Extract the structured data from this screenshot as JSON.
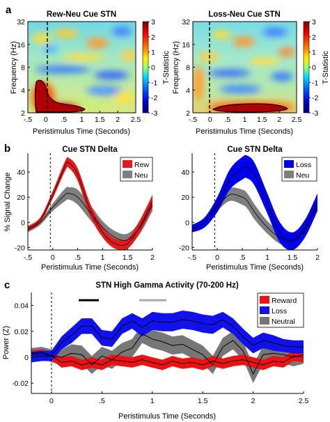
{
  "panel_letters": [
    "a",
    "b",
    "c"
  ],
  "chart_data": [
    {
      "type": "heatmap",
      "panel": "a",
      "title": "Rew-Neu Cue STN",
      "xlabel": "Peristimulus Time (Seconds)",
      "ylabel": "Frequency (Hz)",
      "x_ticks": [
        "-.5",
        "0",
        ".5",
        "1",
        "1.5",
        "2",
        "2.5"
      ],
      "x_range": [
        -0.5,
        2.5
      ],
      "y_ticks": [
        "2",
        "4",
        "8",
        "16",
        "32"
      ],
      "y_range_hz": [
        2,
        32
      ],
      "y_scale": "log2",
      "colorbar": {
        "label": "T-Statistic",
        "range": [
          -3,
          3
        ],
        "ticks": [
          "3",
          "2",
          "1",
          "0",
          "-1",
          "-2",
          "-3"
        ]
      },
      "event_line_x": -0.05,
      "significant_cluster": "low-frequency (2-5 Hz) positive cluster from about -0.1 to 0.6 s, tapering to 1.3 s near 2 Hz",
      "colormap": "jet"
    },
    {
      "type": "heatmap",
      "panel": "a",
      "title": "Loss-Neu Cue STN",
      "xlabel": "Peristimulus Time (Seconds)",
      "ylabel": "Frequency (Hz)",
      "x_ticks": [
        "-.5",
        "0",
        ".5",
        "1",
        "1.5",
        "2",
        "2.5"
      ],
      "x_range": [
        -0.5,
        2.5
      ],
      "y_ticks": [
        "2",
        "4",
        "8",
        "16",
        "32"
      ],
      "y_range_hz": [
        2,
        32
      ],
      "y_scale": "log2",
      "colorbar": {
        "label": "T-Statistic",
        "range": [
          -3,
          3
        ],
        "ticks": [
          "3",
          "2",
          "1",
          "0",
          "-1",
          "-2",
          "-3"
        ]
      },
      "event_line_x": -0.05,
      "significant_cluster": "low-frequency (2-2.6 Hz) positive cluster from about 0.2 to 2.0 s",
      "colormap": "jet"
    },
    {
      "type": "line",
      "panel": "b",
      "title": "Cue STN Delta",
      "xlabel": "Peristimulus Time (Seconds)",
      "ylabel": "% Signal Change",
      "x_ticks": [
        "-.5",
        "0",
        ".5",
        "1",
        "1.5",
        "2"
      ],
      "y_ticks": [
        "-20",
        "0",
        "20",
        "40"
      ],
      "xlim": [
        -0.5,
        2
      ],
      "ylim": [
        -22,
        55
      ],
      "event_line_x": -0.05,
      "legend_position": "top-right",
      "x": [
        -0.5,
        -0.25,
        0,
        0.25,
        0.33,
        0.5,
        0.75,
        1,
        1.25,
        1.5,
        1.75,
        2
      ],
      "series": [
        {
          "name": "Rew",
          "color": "#e41a1c",
          "values": [
            -5,
            2,
            22,
            45,
            47,
            38,
            10,
            -8,
            -17,
            -17,
            -3,
            17
          ],
          "error": [
            2,
            2,
            3,
            4,
            4,
            5,
            5,
            4,
            4,
            4,
            5,
            5
          ]
        },
        {
          "name": "Neu",
          "color": "#7f7f7f",
          "values": [
            -6,
            0,
            12,
            22,
            23,
            20,
            8,
            -4,
            -12,
            -14,
            -4,
            14
          ],
          "error": [
            2,
            2,
            3,
            5,
            5,
            6,
            6,
            5,
            5,
            5,
            5,
            5
          ]
        }
      ]
    },
    {
      "type": "line",
      "panel": "b",
      "title": "Cue STN Delta",
      "xlabel": "Peristimulus Time (Seconds)",
      "ylabel": "% Signal Change",
      "x_ticks": [
        "-.5",
        "0",
        ".5",
        "1",
        "1.5",
        "2"
      ],
      "y_ticks": [
        "-20",
        "0",
        "20",
        "40"
      ],
      "xlim": [
        -0.5,
        2
      ],
      "ylim": [
        -22,
        55
      ],
      "event_line_x": -0.05,
      "legend_position": "top-right",
      "x": [
        -0.5,
        -0.25,
        0,
        0.25,
        0.5,
        0.6,
        0.75,
        1,
        1.25,
        1.5,
        1.75,
        2
      ],
      "series": [
        {
          "name": "Loss",
          "color": "#0000ee",
          "values": [
            -5,
            0,
            14,
            34,
            43,
            44,
            38,
            15,
            -8,
            -15,
            -5,
            16
          ],
          "error": [
            3,
            4,
            6,
            8,
            9,
            9,
            9,
            8,
            8,
            7,
            7,
            7
          ]
        },
        {
          "name": "Neu",
          "color": "#7f7f7f",
          "values": [
            -6,
            0,
            12,
            22,
            20,
            17,
            8,
            -4,
            -12,
            -14,
            -4,
            14
          ],
          "error": [
            2,
            2,
            3,
            5,
            6,
            6,
            6,
            5,
            5,
            5,
            5,
            5
          ]
        }
      ]
    },
    {
      "type": "line",
      "panel": "c",
      "title": "STN High Gamma Activity (70-200 Hz)",
      "xlabel": "Peristimulus Time (Seconds)",
      "ylabel": "Power (Z)",
      "x_ticks": [
        "0",
        ".5",
        "1",
        "1.5",
        "2",
        "2.5"
      ],
      "y_ticks": [
        "-0.02",
        "0",
        "0.02",
        "0.04"
      ],
      "xlim": [
        -0.2,
        2.5
      ],
      "ylim": [
        -0.028,
        0.05
      ],
      "event_line_x": 0,
      "legend_position": "top-right",
      "significance_bars": [
        {
          "series": "Reward",
          "color": "#000000",
          "x_range": [
            0.27,
            0.47
          ],
          "y": 0.044
        },
        {
          "series": "Loss",
          "color": "#aaaaaa",
          "x_range": [
            0.87,
            1.14
          ],
          "y": 0.044
        }
      ],
      "x": [
        -0.2,
        -0.1,
        0,
        0.1,
        0.2,
        0.3,
        0.4,
        0.5,
        0.6,
        0.7,
        0.8,
        0.9,
        1.0,
        1.1,
        1.2,
        1.3,
        1.4,
        1.5,
        1.6,
        1.7,
        1.8,
        1.9,
        2.0,
        2.1,
        2.2,
        2.3,
        2.4,
        2.5
      ],
      "series": [
        {
          "name": "Reward",
          "color": "#ee1111",
          "values": [
            0.002,
            0.003,
            0.001,
            -0.004,
            -0.003,
            -0.006,
            -0.004,
            -0.006,
            -0.002,
            -0.003,
            -0.004,
            -0.002,
            -0.004,
            -0.006,
            -0.003,
            -0.005,
            -0.004,
            -0.006,
            -0.003,
            -0.005,
            -0.003,
            -0.002,
            -0.004,
            -0.006,
            -0.003,
            -0.004,
            0.001,
            0.0
          ],
          "error": [
            0.003,
            0.003,
            0.003,
            0.004,
            0.004,
            0.004,
            0.004,
            0.004,
            0.004,
            0.004,
            0.004,
            0.004,
            0.004,
            0.004,
            0.004,
            0.004,
            0.004,
            0.004,
            0.004,
            0.004,
            0.004,
            0.004,
            0.004,
            0.004,
            0.004,
            0.004,
            0.004,
            0.004
          ]
        },
        {
          "name": "Loss",
          "color": "#1111ee",
          "values": [
            0.0,
            0.001,
            0.001,
            0.011,
            0.017,
            0.024,
            0.024,
            0.015,
            0.014,
            0.024,
            0.028,
            0.023,
            0.028,
            0.027,
            0.027,
            0.029,
            0.028,
            0.026,
            0.025,
            0.029,
            0.024,
            0.016,
            0.009,
            0.013,
            0.011,
            0.009,
            0.008,
            0.008
          ],
          "error": [
            0.004,
            0.004,
            0.004,
            0.005,
            0.006,
            0.006,
            0.006,
            0.006,
            0.006,
            0.006,
            0.006,
            0.007,
            0.007,
            0.007,
            0.007,
            0.007,
            0.007,
            0.007,
            0.007,
            0.006,
            0.006,
            0.006,
            0.006,
            0.006,
            0.006,
            0.005,
            0.005,
            0.005
          ]
        },
        {
          "name": "Neutral",
          "color": "#777777",
          "values": [
            0.003,
            0.004,
            0.001,
            0.0,
            0.003,
            0.002,
            -0.006,
            0.001,
            -0.002,
            0.004,
            0.007,
            0.018,
            0.014,
            0.012,
            0.009,
            0.01,
            0.006,
            0.002,
            -0.006,
            0.008,
            0.013,
            0.005,
            -0.013,
            0.002,
            0.003,
            0.002,
            0.0,
            0.002
          ],
          "error": [
            0.004,
            0.004,
            0.005,
            0.006,
            0.007,
            0.007,
            0.007,
            0.007,
            0.007,
            0.007,
            0.007,
            0.007,
            0.007,
            0.007,
            0.007,
            0.007,
            0.007,
            0.007,
            0.007,
            0.007,
            0.007,
            0.007,
            0.007,
            0.007,
            0.007,
            0.007,
            0.007,
            0.007
          ]
        }
      ]
    }
  ]
}
